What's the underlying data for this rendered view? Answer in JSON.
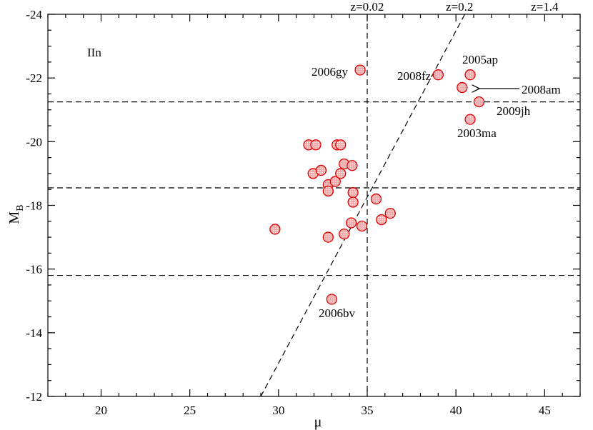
{
  "chart_data": {
    "type": "scatter",
    "title": "",
    "xlabel": "μ",
    "ylabel": "M",
    "ylabel_sub": "B",
    "xlim": [
      17,
      47
    ],
    "ylim": [
      -12,
      -24
    ],
    "x_ticks": [
      20,
      25,
      30,
      35,
      40,
      45
    ],
    "y_ticks": [
      -12,
      -14,
      -16,
      -18,
      -20,
      -22,
      -24
    ],
    "panel_label": "IIn",
    "point_color": "#e00000",
    "points": [
      {
        "x": 29.8,
        "y": -17.25
      },
      {
        "x": 31.7,
        "y": -19.9
      },
      {
        "x": 32.1,
        "y": -19.9
      },
      {
        "x": 31.95,
        "y": -19.0
      },
      {
        "x": 32.4,
        "y": -19.1
      },
      {
        "x": 32.8,
        "y": -18.65
      },
      {
        "x": 32.8,
        "y": -18.45
      },
      {
        "x": 33.2,
        "y": -18.75
      },
      {
        "x": 33.3,
        "y": -19.9
      },
      {
        "x": 33.5,
        "y": -19.9
      },
      {
        "x": 33.5,
        "y": -19.0
      },
      {
        "x": 33.7,
        "y": -19.3
      },
      {
        "x": 34.15,
        "y": -19.25
      },
      {
        "x": 34.2,
        "y": -18.4
      },
      {
        "x": 34.2,
        "y": -18.1
      },
      {
        "x": 32.8,
        "y": -17.0
      },
      {
        "x": 33.7,
        "y": -17.1
      },
      {
        "x": 34.1,
        "y": -17.45
      },
      {
        "x": 34.7,
        "y": -17.35
      },
      {
        "x": 35.5,
        "y": -18.2
      },
      {
        "x": 35.8,
        "y": -17.55
      },
      {
        "x": 36.3,
        "y": -17.75
      },
      {
        "x": 33.0,
        "y": -15.05
      },
      {
        "x": 34.6,
        "y": -22.25
      },
      {
        "x": 39.0,
        "y": -22.1
      },
      {
        "x": 40.8,
        "y": -22.1
      },
      {
        "x": 40.35,
        "y": -21.7
      },
      {
        "x": 41.3,
        "y": -21.25
      },
      {
        "x": 40.8,
        "y": -20.7
      }
    ],
    "horizontal_lines": [
      -21.25,
      -18.55,
      -15.8
    ],
    "vertical_lines": [
      35.0
    ],
    "sloped_line": {
      "x": [
        29.0,
        40.5
      ],
      "y": [
        -12,
        -24
      ]
    },
    "top_labels": [
      {
        "text": "z=0.02",
        "x": 35.0
      },
      {
        "text": "z=0.2",
        "x": 40.2
      },
      {
        "text": "z=1.4",
        "x": 45.0
      }
    ],
    "annotations": [
      {
        "text": "2006gy"
      },
      {
        "text": "2008fz"
      },
      {
        "text": "2005ap"
      },
      {
        "text": "2008am"
      },
      {
        "text": "2009jh"
      },
      {
        "text": "2003ma"
      },
      {
        "text": "2006bv"
      }
    ]
  }
}
